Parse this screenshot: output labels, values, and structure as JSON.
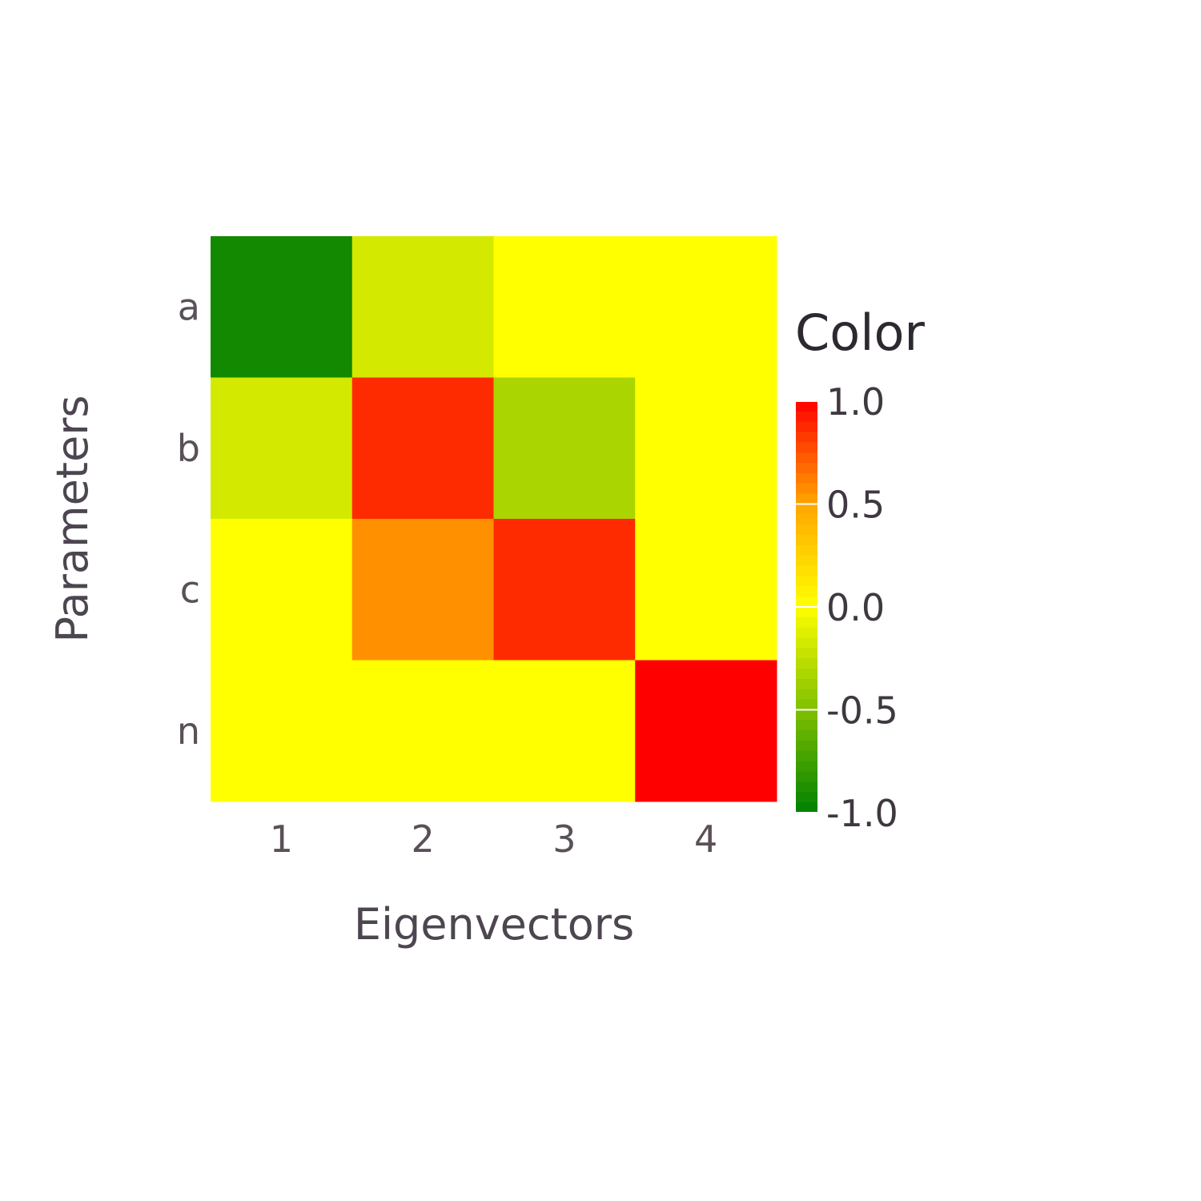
{
  "chart_data": {
    "type": "heatmap",
    "x_categories": [
      "1",
      "2",
      "3",
      "4"
    ],
    "y_categories": [
      "a",
      "b",
      "c",
      "n"
    ],
    "values": [
      [
        -0.93,
        -0.17,
        0.0,
        0.0
      ],
      [
        -0.17,
        0.87,
        -0.33,
        0.0
      ],
      [
        0.0,
        0.56,
        0.87,
        0.0
      ],
      [
        0.0,
        0.0,
        0.0,
        1.0
      ]
    ],
    "xlabel": "Eigenvectors",
    "ylabel": "Parameters",
    "colorbar": {
      "title": "Color",
      "range": [
        -1.0,
        1.0
      ],
      "ticks": [
        "1.0",
        "0.5",
        "0.0",
        "-0.5",
        "-1.0"
      ],
      "tick_values": [
        1.0,
        0.5,
        0.0,
        -0.5,
        -1.0
      ]
    },
    "colorscale": [
      [
        -1.0,
        "#008000"
      ],
      [
        0.0,
        "#ffff00"
      ],
      [
        0.5,
        "#ffa500"
      ],
      [
        1.0,
        "#ff0000"
      ]
    ],
    "grid": false,
    "legend": "right"
  }
}
